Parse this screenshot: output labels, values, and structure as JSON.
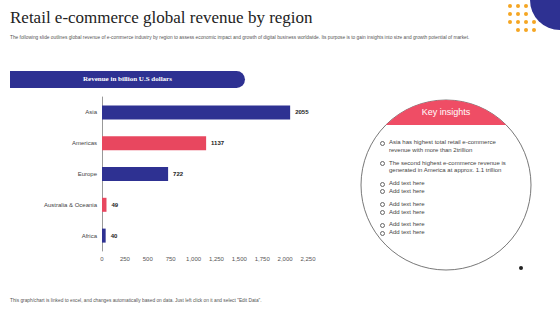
{
  "title": "Retail e-commerce global revenue by region",
  "subtitle": "The following slide outlines global revenue of e-commerce industry by region to assess economic impact and growth of digital business worldwide. Its purpose is to gain insights into size and growth potential of market.",
  "footnote": "This graph/chart is linked to excel, and changes automatically based on data. Just left click on it and select \"Edit Data\".",
  "insights": {
    "title": "Key insights",
    "groups": [
      [
        "Asia has highest total retail e-commerce revenue with more than 2trillion"
      ],
      [
        "The second highest e-commerce revenue is generated in America at approx. 1.1 trillion"
      ],
      [
        "Add text here",
        "Add text here"
      ],
      [
        "Add text here",
        "Add text here"
      ],
      [
        "Add text here",
        "Add text here"
      ]
    ]
  },
  "chart_data": {
    "type": "bar",
    "title": "Revenue in billion U.S dollars",
    "orientation": "horizontal",
    "categories": [
      "Asia",
      "Americas",
      "Europe",
      "Australia & Oceania",
      "Africa"
    ],
    "values": [
      2055,
      1137,
      722,
      49,
      40
    ],
    "colors": [
      "#2e3192",
      "#e8475f",
      "#2e3192",
      "#e8475f",
      "#2e3192"
    ],
    "xlim": [
      0,
      2250
    ],
    "xticks": [
      0,
      250,
      500,
      750,
      1000,
      1250,
      1500,
      1750,
      2000,
      2250
    ],
    "data_labels": true,
    "grid": false
  }
}
